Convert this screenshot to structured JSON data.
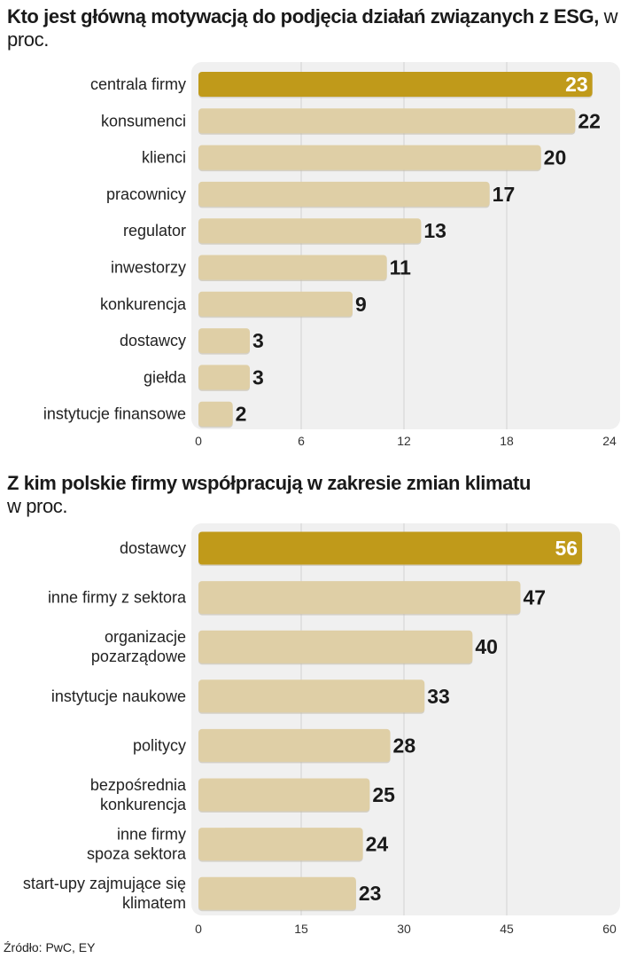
{
  "charts": [
    {
      "title_bold": "Kto jest główną motywacją do podjęcia działań związanych z ESG,",
      "title_unit": " w proc."
    },
    {
      "title_bold": "Z kim polskie firmy współpracują w zakresie zmian klimatu",
      "title_unit": "w proc."
    }
  ],
  "colors": {
    "highlight": "#c09a1a",
    "bar": "#dfcfa6",
    "panel": "#f0f0f0",
    "grid": "#d2d2d2"
  },
  "chart_data": [
    {
      "type": "bar",
      "orientation": "horizontal",
      "title": "Kto jest główną motywacją do podjęcia działań związanych z ESG, w proc.",
      "categories": [
        [
          "centrala firmy"
        ],
        [
          "konsumenci"
        ],
        [
          "klienci"
        ],
        [
          "pracownicy"
        ],
        [
          "regulator"
        ],
        [
          "inwestorzy"
        ],
        [
          "konkurencja"
        ],
        [
          "dostawcy"
        ],
        [
          "giełda"
        ],
        [
          "instytucje finansowe"
        ]
      ],
      "values": [
        23,
        22,
        20,
        17,
        13,
        11,
        9,
        3,
        3,
        2
      ],
      "highlight_index": 0,
      "xlim": [
        0,
        24
      ],
      "xticks": [
        0,
        6,
        12,
        18,
        24
      ]
    },
    {
      "type": "bar",
      "orientation": "horizontal",
      "title": "Z kim polskie firmy współpracują w zakresie zmian klimatu w proc.",
      "categories": [
        [
          "dostawcy"
        ],
        [
          "inne firmy z sektora"
        ],
        [
          "organizacje",
          "pozarządowe"
        ],
        [
          "instytucje naukowe"
        ],
        [
          "politycy"
        ],
        [
          "bezpośrednia",
          "konkurencja"
        ],
        [
          "inne firmy",
          "spoza sektora"
        ],
        [
          "start-upy zajmujące się",
          "klimatem"
        ]
      ],
      "values": [
        56,
        47,
        40,
        33,
        28,
        25,
        24,
        23
      ],
      "highlight_index": 0,
      "xlim": [
        0,
        60
      ],
      "xticks": [
        0,
        15,
        30,
        45,
        60
      ]
    }
  ],
  "source": "Źródło: PwC, EY"
}
